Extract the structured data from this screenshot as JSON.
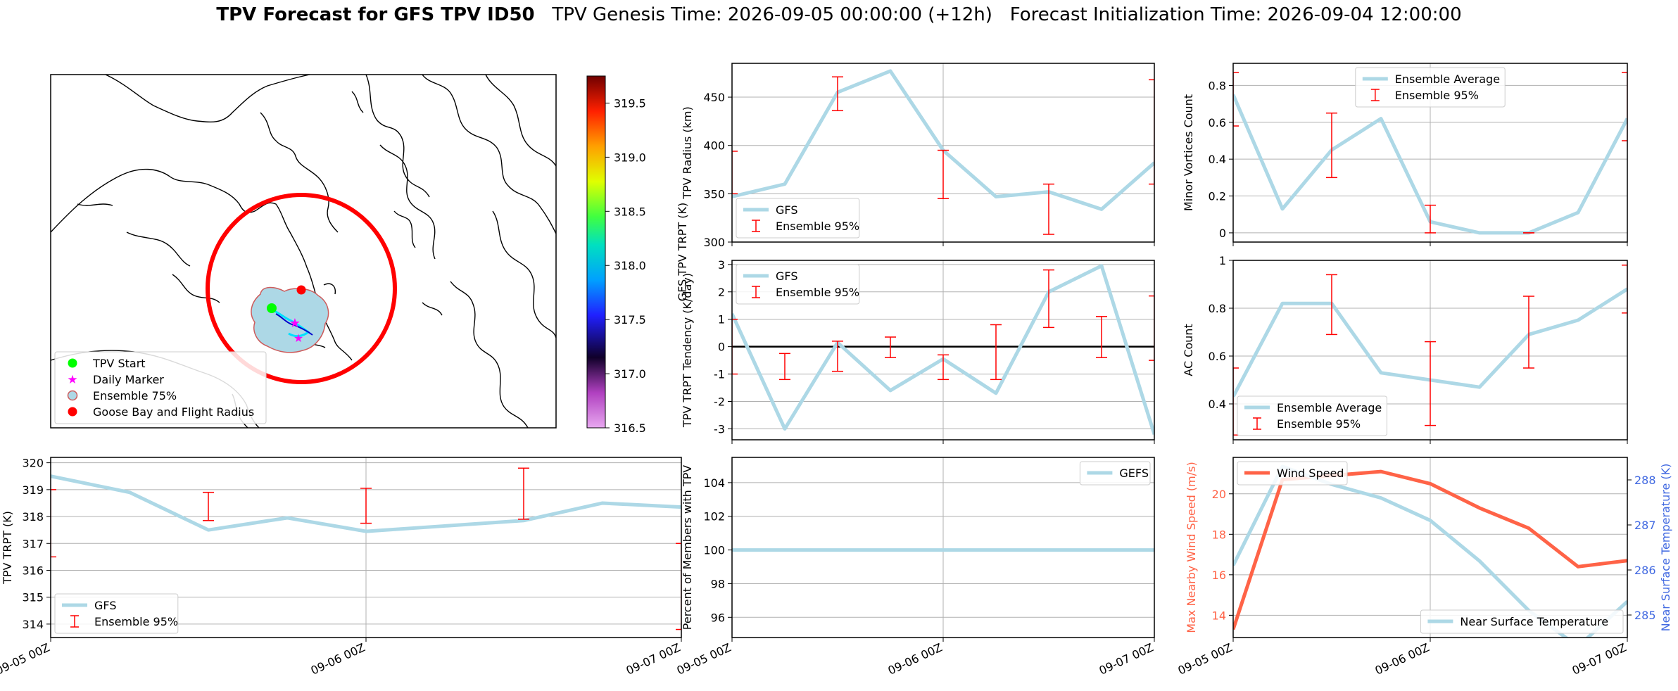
{
  "title": {
    "bold": "TPV Forecast for GFS TPV ID50",
    "genesis": "TPV Genesis Time: 2026-09-05 00:00:00 (+12h)",
    "init": "Forecast Initialization Time: 2026-09-04 12:00:00"
  },
  "colors": {
    "gfs": "#add8e6",
    "ensemble": "#ff0000",
    "wind": "#ff6347",
    "temp_axis": "#4169e1",
    "zero_line": "#000000"
  },
  "map": {
    "legend": [
      "TPV Start",
      "Daily Marker",
      "Ensemble 75%",
      "Goose Bay and Flight Radius"
    ],
    "colorbar": {
      "label": "GFS TPV TRPT (K)",
      "ticks": [
        "316.5",
        "317.0",
        "317.5",
        "318.0",
        "318.5",
        "319.0",
        "319.5"
      ],
      "range": [
        316.5,
        319.75
      ]
    }
  },
  "chart_data": [
    {
      "type": "line",
      "id": "radius",
      "ylabel": "TPV Radius (km)",
      "ylim": [
        300,
        485
      ],
      "yticks": [
        300,
        350,
        400,
        450
      ],
      "series": [
        {
          "name": "GFS",
          "x": [
            0,
            6,
            12,
            18,
            24,
            30,
            36,
            42,
            48
          ],
          "values": [
            347,
            360,
            455,
            477,
            395,
            347,
            352,
            334,
            382
          ]
        }
      ],
      "errorbars": {
        "name": "Ensemble 95%",
        "x": [
          0,
          12,
          24,
          36,
          48
        ],
        "low": [
          350,
          436,
          345,
          308,
          360
        ],
        "high": [
          394,
          471,
          395,
          360,
          468
        ]
      },
      "legend": [
        "GFS",
        "Ensemble 95%"
      ]
    },
    {
      "type": "line",
      "id": "minor",
      "ylabel": "Minor Vortices Count",
      "ylim": [
        -0.05,
        0.92
      ],
      "yticks": [
        0.0,
        0.2,
        0.4,
        0.6,
        0.8
      ],
      "series": [
        {
          "name": "Ensemble Average",
          "x": [
            0,
            6,
            12,
            18,
            24,
            30,
            36,
            42,
            48
          ],
          "values": [
            0.75,
            0.13,
            0.45,
            0.62,
            0.06,
            0.0,
            0.0,
            0.11,
            0.62
          ]
        }
      ],
      "errorbars": {
        "name": "Ensemble 95%",
        "x": [
          0,
          12,
          24,
          36,
          48
        ],
        "low": [
          0.58,
          0.3,
          0.0,
          0.0,
          0.5
        ],
        "high": [
          0.87,
          0.65,
          0.15,
          0.0,
          0.87
        ]
      },
      "legend": [
        "Ensemble Average",
        "Ensemble 95%"
      ]
    },
    {
      "type": "line",
      "id": "tendency",
      "ylabel": "TPV TRPT Tendency (K/day)",
      "ylim": [
        -3.4,
        3.15
      ],
      "yticks": [
        -3,
        -2,
        -1,
        0,
        1,
        2,
        3
      ],
      "zero_line": true,
      "series": [
        {
          "name": "GFS",
          "x": [
            0,
            6,
            12,
            18,
            24,
            30,
            36,
            42,
            48
          ],
          "values": [
            1.2,
            -3.0,
            0.15,
            -1.6,
            -0.45,
            -1.7,
            2.0,
            2.95,
            -3.2
          ]
        }
      ],
      "errorbars": {
        "name": "Ensemble 95%",
        "x": [
          0,
          6,
          12,
          18,
          24,
          30,
          36,
          42,
          48
        ],
        "low": [
          -1.0,
          -1.2,
          -0.9,
          -0.4,
          -1.2,
          -1.2,
          0.7,
          -0.4,
          -0.5
        ],
        "high": [
          1.0,
          -0.25,
          0.2,
          0.35,
          -0.3,
          0.8,
          2.8,
          1.1,
          1.85
        ]
      },
      "legend": [
        "GFS",
        "Ensemble 95%"
      ]
    },
    {
      "type": "line",
      "id": "ac",
      "ylabel": "AC Count",
      "ylim": [
        0.25,
        1.0
      ],
      "yticks": [
        0.4,
        0.6,
        0.8,
        1.0
      ],
      "series": [
        {
          "name": "Ensemble Average",
          "x": [
            0,
            6,
            12,
            18,
            24,
            30,
            36,
            42,
            48
          ],
          "values": [
            0.43,
            0.82,
            0.82,
            0.53,
            0.5,
            0.47,
            0.69,
            0.75,
            0.88
          ]
        }
      ],
      "errorbars": {
        "name": "Ensemble 95%",
        "x": [
          0,
          12,
          24,
          36,
          48
        ],
        "low": [
          0.27,
          0.69,
          0.31,
          0.55,
          0.78
        ],
        "high": [
          0.55,
          0.94,
          0.66,
          0.85,
          0.98
        ]
      },
      "legend": [
        "Ensemble Average",
        "Ensemble 95%"
      ]
    },
    {
      "type": "line",
      "id": "trpt",
      "ylabel": "TPV TRPT (K)",
      "ylim": [
        313.5,
        320.2
      ],
      "yticks": [
        314,
        315,
        316,
        317,
        318,
        319,
        320
      ],
      "series": [
        {
          "name": "GFS",
          "x": [
            0,
            6,
            12,
            18,
            24,
            30,
            36,
            42,
            48
          ],
          "values": [
            319.5,
            318.9,
            317.5,
            317.95,
            317.45,
            317.65,
            317.85,
            318.5,
            318.35
          ]
        }
      ],
      "errorbars": {
        "name": "Ensemble 95%",
        "x": [
          0,
          12,
          24,
          36,
          48
        ],
        "low": [
          316.5,
          317.85,
          317.75,
          317.9,
          313.8
        ],
        "high": [
          319.0,
          318.9,
          319.05,
          319.8,
          317.0
        ]
      },
      "legend": [
        "GFS",
        "Ensemble 95%"
      ],
      "xticks": [
        "09-05 00Z",
        "09-06 00Z",
        "09-07 00Z"
      ]
    },
    {
      "type": "line",
      "id": "percent",
      "ylabel": "Percent of Members with TPV",
      "ylim": [
        94.8,
        105.5
      ],
      "yticks": [
        96,
        98,
        100,
        102,
        104
      ],
      "series": [
        {
          "name": "GEFS",
          "x": [
            0,
            48
          ],
          "values": [
            100,
            100
          ]
        }
      ],
      "legend": [
        "GEFS"
      ],
      "xticks": [
        "09-05 00Z",
        "09-06 00Z",
        "09-07 00Z"
      ]
    },
    {
      "type": "line",
      "id": "wind",
      "ylabel": "Max Nearby Wind Speed (m/s)",
      "ylim": [
        12.9,
        21.8
      ],
      "yticks": [
        14,
        16,
        18,
        20
      ],
      "y2label": "Near Surface Temperature (K)",
      "y2lim": [
        284.5,
        288.5
      ],
      "y2ticks": [
        285,
        286,
        287,
        288
      ],
      "series": [
        {
          "name": "Wind Speed",
          "axis": "left",
          "x": [
            0,
            6,
            12,
            18,
            24,
            30,
            36,
            42,
            48
          ],
          "values": [
            13.3,
            20.7,
            20.9,
            21.1,
            20.5,
            19.3,
            18.3,
            16.4,
            16.7
          ]
        },
        {
          "name": "Near Surface Temperature",
          "axis": "right",
          "x": [
            0,
            6,
            12,
            18,
            24,
            30,
            36,
            42,
            48
          ],
          "values": [
            286.1,
            288.3,
            287.9,
            287.6,
            287.1,
            286.2,
            285.1,
            284.3,
            285.3
          ]
        }
      ],
      "legend": [
        "Wind Speed",
        "Near Surface Temperature"
      ],
      "xticks": [
        "09-05 00Z",
        "09-06 00Z",
        "09-07 00Z"
      ]
    }
  ]
}
